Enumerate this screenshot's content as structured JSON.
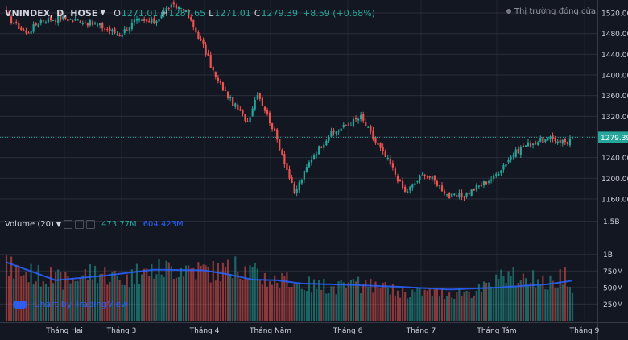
{
  "header": {
    "symbol": "VNINDEX, D, HOSE",
    "open_key": "O",
    "open": "1271.01",
    "high_key": "H",
    "high": "1287.65",
    "low_key": "L",
    "low": "1271.01",
    "close_key": "C",
    "close": "1279.39",
    "change": "+8.59 (+0.68%)"
  },
  "status": "Thị trường đóng cửa",
  "volume": {
    "label": "Volume (20)",
    "value": "473.77M",
    "ma": "604.423M"
  },
  "brand": "Chart by TradingView",
  "colors": {
    "bg": "#131722",
    "up": "#26a69a",
    "down": "#ef5350",
    "ma": "#2962ff",
    "grid": "#2a2e39",
    "text": "#d1d4dc"
  },
  "chart_data": {
    "type": "candlestick",
    "x_ticks": [
      "Tháng Hai",
      "Tháng 3",
      "Tháng 4",
      "Tháng Năm",
      "Tháng 6",
      "Tháng 7",
      "Tháng Tám",
      "Tháng 9"
    ],
    "price_ticks": [
      "1520.00",
      "1480.00",
      "1440.00",
      "1400.00",
      "1360.00",
      "1320.00",
      "1280.00",
      "1240.00",
      "1200.00",
      "1160.00"
    ],
    "price_range": [
      1135,
      1545
    ],
    "last_price": "1279.39",
    "volume_ticks": [
      "1.5B",
      "1B",
      "750M",
      "500M",
      "250M"
    ],
    "volume_range": [
      0,
      1580
    ],
    "price_segments": [
      [
        0,
        1515
      ],
      [
        8,
        1480
      ],
      [
        14,
        1506
      ],
      [
        22,
        1510
      ],
      [
        30,
        1505
      ],
      [
        38,
        1495
      ],
      [
        46,
        1478
      ],
      [
        52,
        1503
      ],
      [
        60,
        1502
      ],
      [
        66,
        1532
      ],
      [
        72,
        1530
      ],
      [
        80,
        1455
      ],
      [
        85,
        1395
      ],
      [
        92,
        1345
      ],
      [
        98,
        1310
      ],
      [
        102,
        1367
      ],
      [
        108,
        1300
      ],
      [
        112,
        1248
      ],
      [
        117,
        1170
      ],
      [
        124,
        1240
      ],
      [
        131,
        1283
      ],
      [
        138,
        1302
      ],
      [
        144,
        1318
      ],
      [
        150,
        1270
      ],
      [
        156,
        1227
      ],
      [
        162,
        1172
      ],
      [
        170,
        1210
      ],
      [
        175,
        1190
      ],
      [
        180,
        1164
      ],
      [
        186,
        1167
      ],
      [
        192,
        1185
      ],
      [
        198,
        1202
      ],
      [
        204,
        1238
      ],
      [
        210,
        1262
      ],
      [
        216,
        1272
      ],
      [
        222,
        1276
      ],
      [
        228,
        1270
      ],
      [
        230,
        1283
      ]
    ],
    "volume_segments": [
      [
        0,
        820
      ],
      [
        12,
        700
      ],
      [
        24,
        610
      ],
      [
        36,
        760
      ],
      [
        48,
        630
      ],
      [
        60,
        780
      ],
      [
        72,
        820
      ],
      [
        84,
        760
      ],
      [
        96,
        800
      ],
      [
        108,
        620
      ],
      [
        120,
        560
      ],
      [
        132,
        500
      ],
      [
        144,
        540
      ],
      [
        156,
        460
      ],
      [
        168,
        430
      ],
      [
        180,
        430
      ],
      [
        192,
        460
      ],
      [
        204,
        680
      ],
      [
        216,
        600
      ],
      [
        222,
        560
      ],
      [
        226,
        720
      ],
      [
        228,
        600
      ],
      [
        230,
        474
      ]
    ],
    "volume_ma": [
      [
        0,
        880
      ],
      [
        20,
        610
      ],
      [
        40,
        680
      ],
      [
        60,
        770
      ],
      [
        80,
        760
      ],
      [
        90,
        700
      ],
      [
        100,
        620
      ],
      [
        110,
        610
      ],
      [
        120,
        560
      ],
      [
        140,
        540
      ],
      [
        160,
        510
      ],
      [
        180,
        470
      ],
      [
        200,
        500
      ],
      [
        220,
        550
      ],
      [
        230,
        604
      ]
    ]
  }
}
